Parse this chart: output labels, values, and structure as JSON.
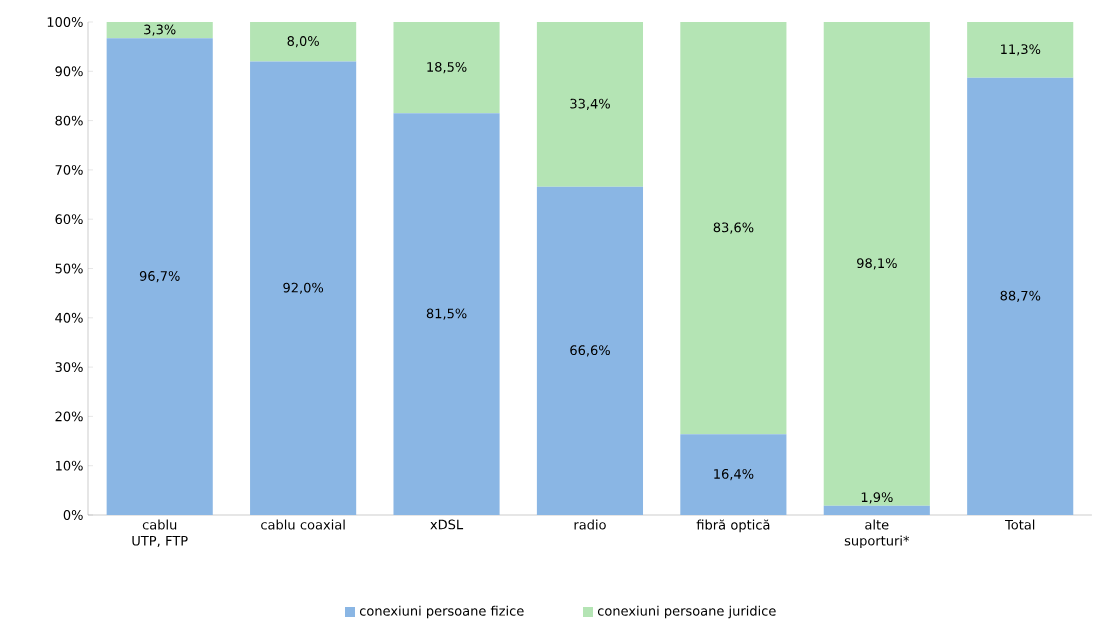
{
  "chart_data": {
    "type": "bar",
    "stacked": true,
    "categories": [
      "cablu UTP, FTP",
      "cablu coaxial",
      "xDSL",
      "radio",
      "fibră optică",
      "alte suporturi*",
      "Total"
    ],
    "series": [
      {
        "name": "conexiuni persoane fizice",
        "color": "#8ab6e4",
        "values": [
          96.7,
          92.0,
          81.5,
          66.6,
          16.4,
          1.9,
          88.7
        ],
        "value_labels": [
          "96,7%",
          "92,0%",
          "81,5%",
          "66,6%",
          "16,4%",
          "1,9%",
          "88,7%"
        ]
      },
      {
        "name": "conexiuni persoane juridice",
        "color": "#b4e4b4",
        "values": [
          3.3,
          8.0,
          18.5,
          33.4,
          83.6,
          98.1,
          11.3
        ],
        "value_labels": [
          "3,3%",
          "8,0%",
          "18,5%",
          "33,4%",
          "83,6%",
          "98,1%",
          "11,3%"
        ]
      }
    ],
    "ylim": [
      0,
      100
    ],
    "yticks": [
      {
        "value": 0,
        "label": "0%"
      },
      {
        "value": 10,
        "label": "10%"
      },
      {
        "value": 20,
        "label": "20%"
      },
      {
        "value": 30,
        "label": "30%"
      },
      {
        "value": 40,
        "label": "40%"
      },
      {
        "value": 50,
        "label": "50%"
      },
      {
        "value": 60,
        "label": "60%"
      },
      {
        "value": 70,
        "label": "70%"
      },
      {
        "value": 80,
        "label": "80%"
      },
      {
        "value": 90,
        "label": "90%"
      },
      {
        "value": 100,
        "label": "100%"
      }
    ],
    "legend": "bottom",
    "grid": false
  }
}
